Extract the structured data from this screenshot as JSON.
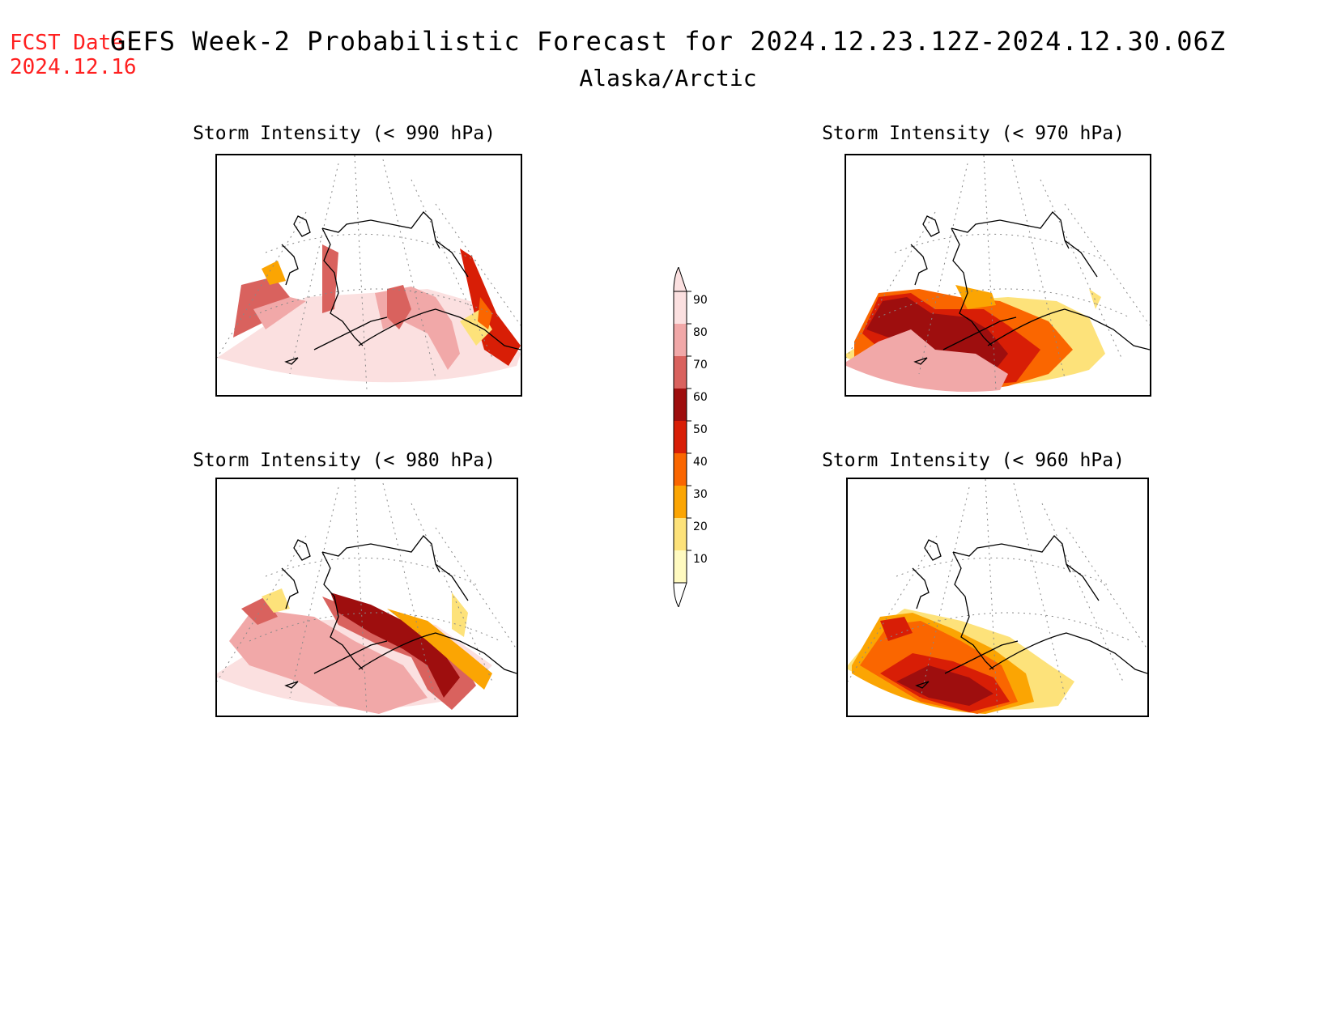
{
  "header": {
    "fcst_label": "FCST Date:",
    "fcst_date": "2024.12.16",
    "title": "GEFS Week-2 Probabilistic Forecast for 2024.12.23.12Z-2024.12.30.06Z",
    "region": "Alaska/Arctic"
  },
  "panels": [
    {
      "id": "p990",
      "title": "Storm Intensity (< 990 hPa)"
    },
    {
      "id": "p970",
      "title": "Storm Intensity (< 970 hPa)"
    },
    {
      "id": "p980",
      "title": "Storm Intensity (< 980 hPa)"
    },
    {
      "id": "p960",
      "title": "Storm Intensity (< 960 hPa)"
    }
  ],
  "colorbar": {
    "labels": [
      "90",
      "80",
      "70",
      "60",
      "50",
      "40",
      "30",
      "20",
      "10"
    ],
    "colors": [
      "#fbe0e0",
      "#f1a8a8",
      "#d9625e",
      "#9e0e0e",
      "#d81e06",
      "#fa6600",
      "#fba503",
      "#fde27a",
      "#fffac0"
    ]
  }
}
